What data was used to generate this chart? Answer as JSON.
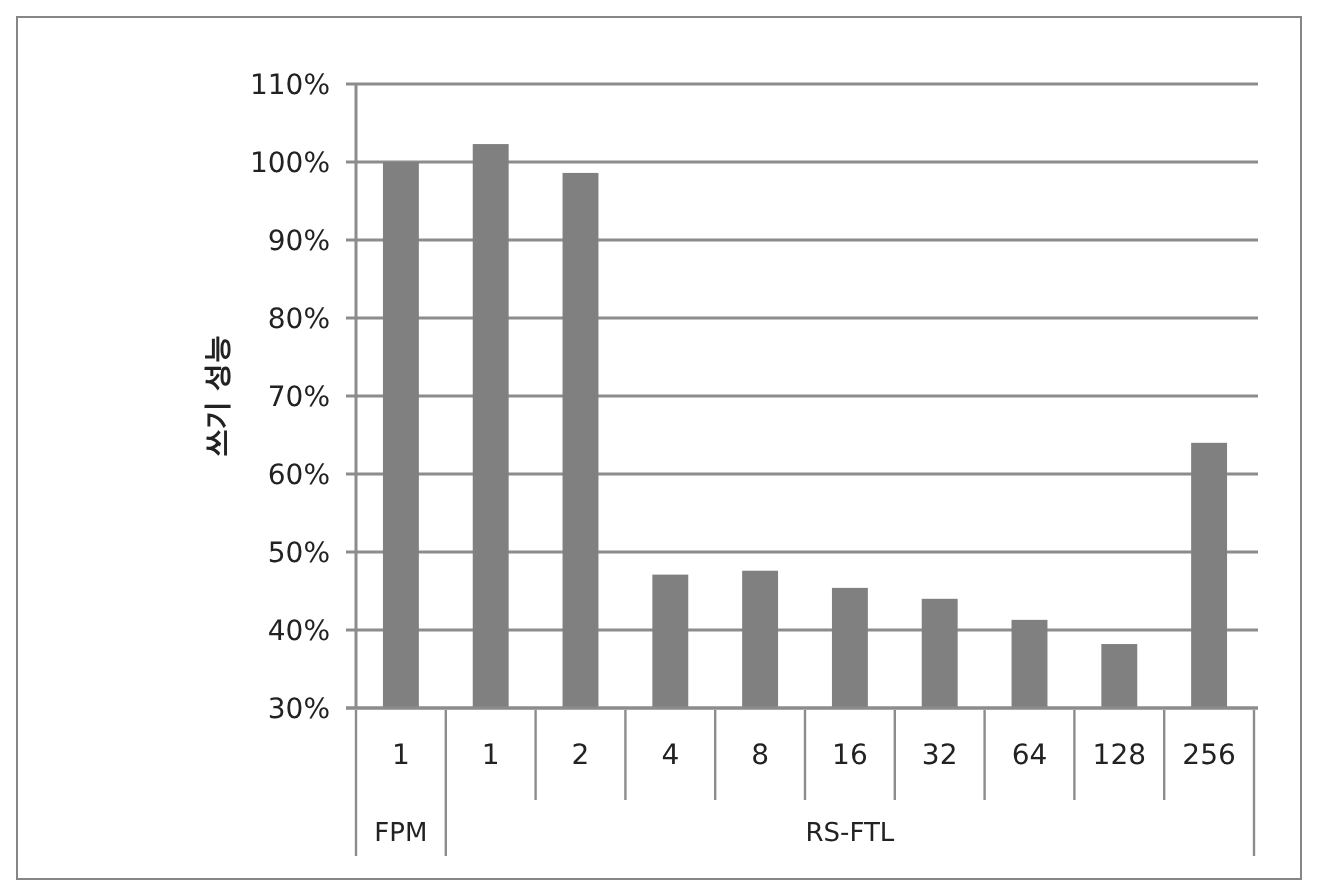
{
  "chart_data": {
    "type": "bar",
    "ylabel": "쓰기 성능",
    "categories": [
      "1",
      "1",
      "2",
      "4",
      "8",
      "16",
      "32",
      "64",
      "128",
      "256"
    ],
    "values": [
      100,
      102.3,
      98.6,
      47.1,
      47.6,
      45.4,
      44.0,
      41.3,
      38.2,
      64.0
    ],
    "color": "#808080",
    "ylim": [
      30,
      110
    ],
    "yticks": [
      {
        "value": 30,
        "label": "30%"
      },
      {
        "value": 40,
        "label": "40%"
      },
      {
        "value": 50,
        "label": "50%"
      },
      {
        "value": 60,
        "label": "60%"
      },
      {
        "value": 70,
        "label": "70%"
      },
      {
        "value": 80,
        "label": "80%"
      },
      {
        "value": 90,
        "label": "90%"
      },
      {
        "value": 100,
        "label": "100%"
      },
      {
        "value": 110,
        "label": "110%"
      }
    ],
    "annotations": [
      "FPM",
      "RS-FTL"
    ],
    "grid": "y"
  }
}
